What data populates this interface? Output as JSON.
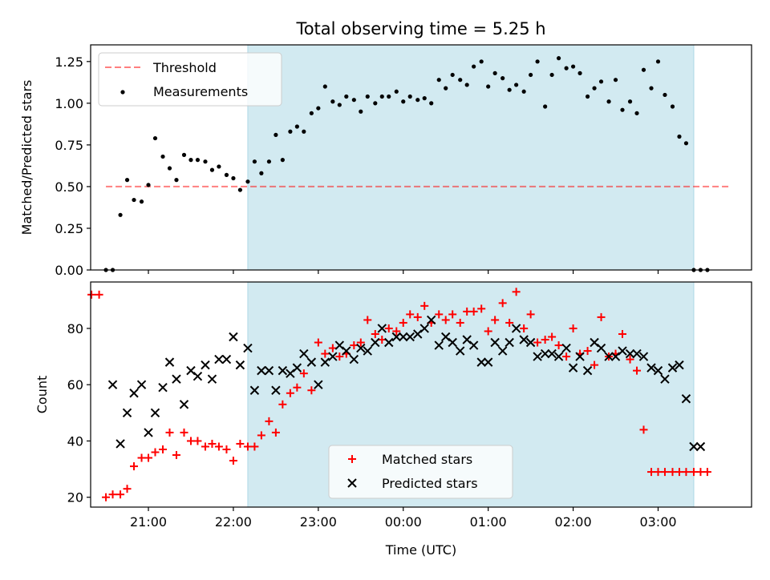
{
  "title": "Total observing time = 5.25 h",
  "colors": {
    "observing_window": "#add8e6",
    "threshold": "#ff0000",
    "measurements": "#000000",
    "matched": "#ff0000",
    "predicted": "#000000"
  },
  "chart_data": [
    {
      "type": "scatter",
      "panel": "top",
      "title": "Total observing time = 5.25 h",
      "xlabel": "",
      "ylabel": "Matched/Predicted stars",
      "xlim": [
        20.32,
        28.1
      ],
      "ylim": [
        0.0,
        1.35
      ],
      "yticks": [
        0.0,
        0.25,
        0.5,
        0.75,
        1.0,
        1.25
      ],
      "ytick_labels": [
        "0.00",
        "0.25",
        "0.50",
        "0.75",
        "1.00",
        "1.25"
      ],
      "observing_window": [
        22.17,
        27.42
      ],
      "threshold": {
        "name": "Threshold",
        "value": 0.5,
        "x_range": [
          20.5,
          27.83
        ]
      },
      "legend": {
        "placement": "top-left",
        "entries": [
          "Threshold",
          "Measurements"
        ]
      },
      "series": [
        {
          "name": "Measurements",
          "x": [
            20.5,
            20.58,
            20.67,
            20.75,
            20.83,
            20.92,
            21.0,
            21.08,
            21.17,
            21.25,
            21.33,
            21.42,
            21.5,
            21.58,
            21.67,
            21.75,
            21.83,
            21.92,
            22.0,
            22.08,
            22.17,
            22.25,
            22.33,
            22.42,
            22.5,
            22.58,
            22.67,
            22.75,
            22.83,
            22.92,
            23.0,
            23.08,
            23.17,
            23.25,
            23.33,
            23.42,
            23.5,
            23.58,
            23.67,
            23.75,
            23.83,
            23.92,
            24.0,
            24.08,
            24.17,
            24.25,
            24.33,
            24.42,
            24.5,
            24.58,
            24.67,
            24.75,
            24.83,
            24.92,
            25.0,
            25.08,
            25.17,
            25.25,
            25.33,
            25.42,
            25.5,
            25.58,
            25.67,
            25.75,
            25.83,
            25.92,
            26.0,
            26.08,
            26.17,
            26.25,
            26.33,
            26.42,
            26.5,
            26.58,
            26.67,
            26.75,
            26.83,
            26.92,
            27.0,
            27.08,
            27.17,
            27.25,
            27.33,
            27.42,
            27.5,
            27.58
          ],
          "y": [
            0.0,
            0.0,
            0.33,
            0.54,
            0.42,
            0.41,
            0.51,
            0.79,
            0.68,
            0.61,
            0.54,
            0.69,
            0.66,
            0.66,
            0.65,
            0.6,
            0.62,
            0.57,
            0.55,
            0.48,
            0.53,
            0.65,
            0.58,
            0.65,
            0.81,
            0.66,
            0.83,
            0.86,
            0.83,
            0.94,
            0.97,
            1.1,
            1.01,
            0.99,
            1.04,
            1.02,
            0.95,
            1.04,
            1.0,
            1.04,
            1.04,
            1.07,
            1.01,
            1.04,
            1.02,
            1.03,
            1.0,
            1.14,
            1.09,
            1.17,
            1.14,
            1.11,
            1.22,
            1.25,
            1.1,
            1.18,
            1.15,
            1.08,
            1.11,
            1.07,
            1.17,
            1.25,
            0.98,
            1.17,
            1.27,
            1.21,
            1.22,
            1.18,
            1.04,
            1.09,
            1.13,
            1.01,
            1.14,
            0.96,
            1.01,
            0.94,
            1.2,
            1.09,
            1.25,
            1.05,
            0.98,
            0.8,
            0.76,
            0.0,
            0.0,
            0.0
          ]
        }
      ]
    },
    {
      "type": "scatter",
      "panel": "bottom",
      "xlabel": "Time (UTC)",
      "ylabel": "Count",
      "xlim": [
        20.32,
        28.1
      ],
      "ylim": [
        16.5,
        96.5
      ],
      "yticks": [
        20,
        40,
        60,
        80
      ],
      "ytick_labels": [
        "20",
        "40",
        "60",
        "80"
      ],
      "xticks": [
        21,
        22,
        23,
        24,
        25,
        26,
        27
      ],
      "xtick_labels": [
        "21:00",
        "22:00",
        "23:00",
        "00:00",
        "01:00",
        "02:00",
        "03:00"
      ],
      "observing_window": [
        22.17,
        27.42
      ],
      "legend": {
        "placement": "bottom-center",
        "entries": [
          "Matched stars",
          "Predicted stars"
        ]
      },
      "series": [
        {
          "name": "Matched stars",
          "marker": "+",
          "x": [
            20.33,
            20.42,
            20.5,
            20.58,
            20.67,
            20.75,
            20.83,
            20.92,
            21.0,
            21.08,
            21.17,
            21.25,
            21.33,
            21.42,
            21.5,
            21.58,
            21.67,
            21.75,
            21.83,
            21.92,
            22.0,
            22.08,
            22.17,
            22.25,
            22.33,
            22.42,
            22.5,
            22.58,
            22.67,
            22.75,
            22.83,
            22.92,
            23.0,
            23.08,
            23.17,
            23.25,
            23.33,
            23.42,
            23.5,
            23.58,
            23.67,
            23.75,
            23.83,
            23.92,
            24.0,
            24.08,
            24.17,
            24.25,
            24.33,
            24.42,
            24.5,
            24.58,
            24.67,
            24.75,
            24.83,
            24.92,
            25.0,
            25.08,
            25.17,
            25.25,
            25.33,
            25.42,
            25.5,
            25.58,
            25.67,
            25.75,
            25.83,
            25.92,
            26.0,
            26.08,
            26.17,
            26.25,
            26.33,
            26.42,
            26.5,
            26.58,
            26.67,
            26.75,
            26.83,
            26.92,
            27.0,
            27.08,
            27.17,
            27.25,
            27.33,
            27.42,
            27.5,
            27.58
          ],
          "y": [
            92,
            92,
            20,
            21,
            21,
            23,
            31,
            34,
            34,
            36,
            37,
            43,
            35,
            43,
            40,
            40,
            38,
            39,
            38,
            37,
            33,
            39,
            38,
            38,
            42,
            47,
            43,
            53,
            57,
            59,
            64,
            58,
            75,
            71,
            73,
            70,
            71,
            74,
            75,
            83,
            78,
            76,
            80,
            79,
            82,
            85,
            84,
            88,
            82,
            85,
            83,
            85,
            82,
            86,
            86,
            87,
            79,
            83,
            89,
            82,
            93,
            80,
            85,
            75,
            76,
            77,
            74,
            70,
            80,
            71,
            72,
            67,
            84,
            70,
            71,
            78,
            69,
            65,
            44,
            29,
            29,
            29,
            29,
            29,
            29,
            29,
            29,
            29
          ]
        },
        {
          "name": "Predicted stars",
          "marker": "x",
          "x": [
            20.58,
            20.67,
            20.75,
            20.83,
            20.92,
            21.0,
            21.08,
            21.17,
            21.25,
            21.33,
            21.42,
            21.5,
            21.58,
            21.67,
            21.75,
            21.83,
            21.92,
            22.0,
            22.08,
            22.17,
            22.25,
            22.33,
            22.42,
            22.5,
            22.58,
            22.67,
            22.75,
            22.83,
            22.92,
            23.0,
            23.08,
            23.17,
            23.25,
            23.33,
            23.42,
            23.5,
            23.58,
            23.67,
            23.75,
            23.83,
            23.92,
            24.0,
            24.08,
            24.17,
            24.25,
            24.33,
            24.42,
            24.5,
            24.58,
            24.67,
            24.75,
            24.83,
            24.92,
            25.0,
            25.08,
            25.17,
            25.25,
            25.33,
            25.42,
            25.5,
            25.58,
            25.67,
            25.75,
            25.83,
            25.92,
            26.0,
            26.08,
            26.17,
            26.25,
            26.33,
            26.42,
            26.5,
            26.58,
            26.67,
            26.75,
            26.83,
            26.92,
            27.0,
            27.08,
            27.17,
            27.25,
            27.33,
            27.42,
            27.5
          ],
          "y": [
            60,
            39,
            50,
            57,
            60,
            43,
            50,
            59,
            68,
            62,
            53,
            65,
            63,
            67,
            62,
            69,
            69,
            77,
            67,
            73,
            58,
            65,
            65,
            58,
            65,
            64,
            66,
            71,
            68,
            60,
            68,
            70,
            74,
            72,
            69,
            73,
            72,
            75,
            80,
            75,
            77,
            77,
            77,
            78,
            80,
            83,
            74,
            77,
            75,
            72,
            76,
            74,
            68,
            68,
            75,
            72,
            75,
            80,
            76,
            75,
            70,
            71,
            71,
            70,
            73,
            66,
            70,
            65,
            75,
            73,
            70,
            70,
            72,
            71,
            71,
            70,
            66,
            65,
            62,
            66,
            67,
            55,
            38,
            38
          ]
        }
      ]
    }
  ]
}
